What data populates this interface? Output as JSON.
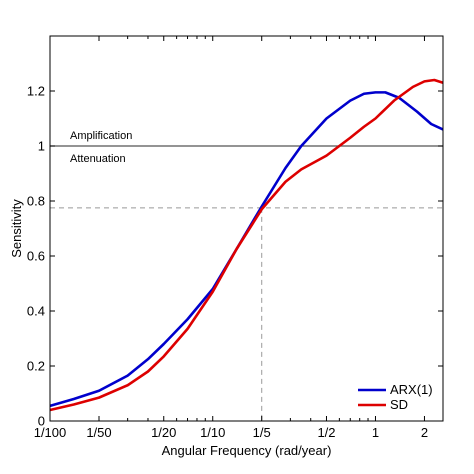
{
  "chart_data": {
    "type": "line",
    "xlabel": "Angular Frequency (rad/year)",
    "ylabel": "Sensitivity",
    "xscale": "log",
    "xlim": [
      0.01,
      2.6
    ],
    "ylim": [
      0,
      1.4
    ],
    "grid": false,
    "legend_position": "bottom-right",
    "x_ticks": [
      {
        "value": 0.01,
        "label": "1/100"
      },
      {
        "value": 0.02,
        "label": "1/50"
      },
      {
        "value": 0.05,
        "label": "1/20"
      },
      {
        "value": 0.1,
        "label": "1/10"
      },
      {
        "value": 0.2,
        "label": "1/5"
      },
      {
        "value": 0.5,
        "label": "1/2"
      },
      {
        "value": 1,
        "label": "1"
      },
      {
        "value": 2,
        "label": "2"
      }
    ],
    "y_ticks": [
      {
        "value": 0,
        "label": "0"
      },
      {
        "value": 0.2,
        "label": "0.2"
      },
      {
        "value": 0.4,
        "label": "0.4"
      },
      {
        "value": 0.6,
        "label": "0.6"
      },
      {
        "value": 0.8,
        "label": "0.8"
      },
      {
        "value": 1,
        "label": "1"
      },
      {
        "value": 1.2,
        "label": "1.2"
      }
    ],
    "reference_line": {
      "y": 1,
      "label_above": "Amplification",
      "label_below": "Attenuation"
    },
    "crossover": {
      "x": 0.2,
      "y": 0.775
    },
    "series": [
      {
        "name": "ARX(1)",
        "color": "#0000cc",
        "points": [
          [
            0.01,
            0.055
          ],
          [
            0.014,
            0.08
          ],
          [
            0.02,
            0.11
          ],
          [
            0.03,
            0.165
          ],
          [
            0.04,
            0.225
          ],
          [
            0.05,
            0.28
          ],
          [
            0.07,
            0.37
          ],
          [
            0.1,
            0.48
          ],
          [
            0.14,
            0.625
          ],
          [
            0.2,
            0.78
          ],
          [
            0.28,
            0.92
          ],
          [
            0.35,
            1.0
          ],
          [
            0.5,
            1.1
          ],
          [
            0.7,
            1.165
          ],
          [
            0.85,
            1.19
          ],
          [
            1.0,
            1.195
          ],
          [
            1.15,
            1.195
          ],
          [
            1.4,
            1.175
          ],
          [
            1.8,
            1.125
          ],
          [
            2.2,
            1.08
          ],
          [
            2.6,
            1.06
          ]
        ]
      },
      {
        "name": "SD",
        "color": "#dd0000",
        "points": [
          [
            0.01,
            0.04
          ],
          [
            0.014,
            0.06
          ],
          [
            0.02,
            0.085
          ],
          [
            0.03,
            0.13
          ],
          [
            0.04,
            0.18
          ],
          [
            0.05,
            0.235
          ],
          [
            0.07,
            0.335
          ],
          [
            0.1,
            0.47
          ],
          [
            0.14,
            0.625
          ],
          [
            0.2,
            0.77
          ],
          [
            0.28,
            0.87
          ],
          [
            0.35,
            0.915
          ],
          [
            0.5,
            0.965
          ],
          [
            0.7,
            1.03
          ],
          [
            0.85,
            1.07
          ],
          [
            1.0,
            1.1
          ],
          [
            1.3,
            1.165
          ],
          [
            1.7,
            1.215
          ],
          [
            2.0,
            1.235
          ],
          [
            2.3,
            1.24
          ],
          [
            2.6,
            1.23
          ]
        ]
      }
    ]
  }
}
